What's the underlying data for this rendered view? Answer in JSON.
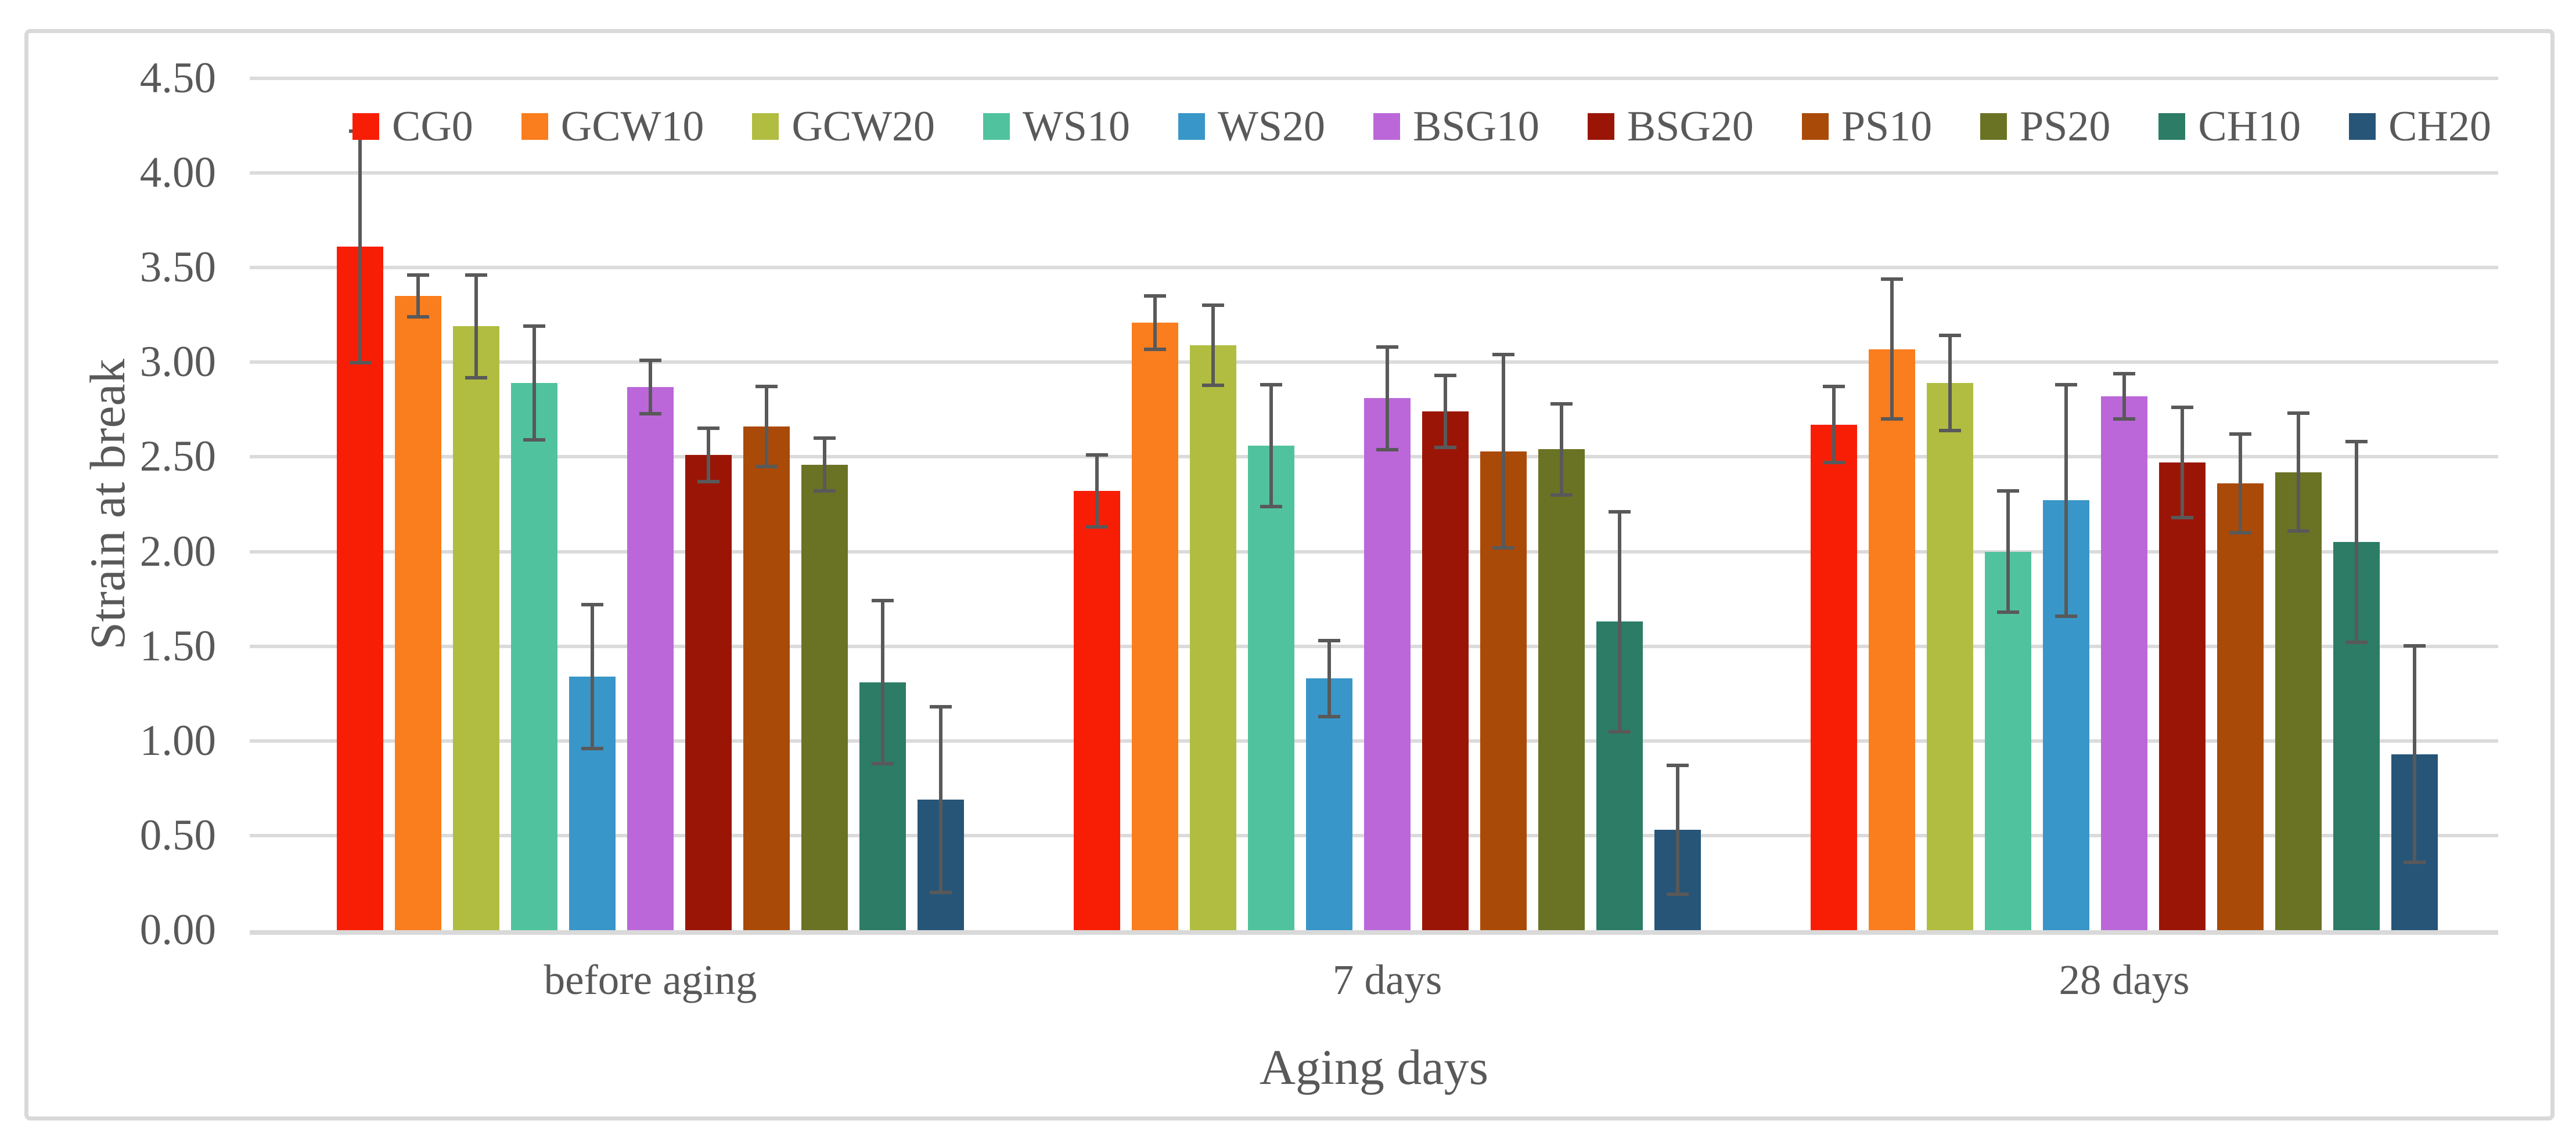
{
  "chart_data": {
    "type": "bar",
    "title": "",
    "xlabel": "Aging days",
    "ylabel": "Strain at break",
    "ylim": [
      0,
      4.5
    ],
    "ytick_step": 0.5,
    "ytick_labels": [
      "0.00",
      "0.50",
      "1.00",
      "1.50",
      "2.00",
      "2.50",
      "3.00",
      "3.50",
      "4.00",
      "4.50"
    ],
    "categories": [
      "before aging",
      "7 days",
      "28 days"
    ],
    "legend_position": "top",
    "grid": true,
    "series": [
      {
        "name": "CG0",
        "color": "#F81E06",
        "values": [
          3.61,
          2.32,
          2.67
        ],
        "errors": [
          0.62,
          0.2,
          0.21
        ]
      },
      {
        "name": "GCW10",
        "color": "#FA7D1E",
        "values": [
          3.35,
          3.21,
          3.07
        ],
        "errors": [
          0.12,
          0.15,
          0.38
        ]
      },
      {
        "name": "GCW20",
        "color": "#B1BD41",
        "values": [
          3.19,
          3.09,
          2.89
        ],
        "errors": [
          0.28,
          0.22,
          0.26
        ]
      },
      {
        "name": "WS10",
        "color": "#50C39E",
        "values": [
          2.89,
          2.56,
          2.0
        ],
        "errors": [
          0.31,
          0.33,
          0.33
        ]
      },
      {
        "name": "WS20",
        "color": "#3996C8",
        "values": [
          1.34,
          1.33,
          2.27
        ],
        "errors": [
          0.39,
          0.21,
          0.62
        ]
      },
      {
        "name": "BSG10",
        "color": "#BB67D9",
        "values": [
          2.87,
          2.81,
          2.82
        ],
        "errors": [
          0.15,
          0.28,
          0.13
        ]
      },
      {
        "name": "BSG20",
        "color": "#9B1507",
        "values": [
          2.51,
          2.74,
          2.47
        ],
        "errors": [
          0.15,
          0.2,
          0.3
        ]
      },
      {
        "name": "PS10",
        "color": "#AA4A08",
        "values": [
          2.66,
          2.53,
          2.36
        ],
        "errors": [
          0.22,
          0.52,
          0.27
        ]
      },
      {
        "name": "PS20",
        "color": "#6A7324",
        "values": [
          2.46,
          2.54,
          2.42
        ],
        "errors": [
          0.15,
          0.25,
          0.32
        ]
      },
      {
        "name": "CH10",
        "color": "#2C7C66",
        "values": [
          1.31,
          1.63,
          2.05
        ],
        "errors": [
          0.44,
          0.59,
          0.54
        ]
      },
      {
        "name": "CH20",
        "color": "#265578",
        "values": [
          0.69,
          0.53,
          0.93
        ],
        "errors": [
          0.5,
          0.35,
          0.58
        ]
      }
    ],
    "colors": {
      "gridline": "#DBDBDB",
      "axis_line": "#D9D9D9",
      "frame_border": "#D9D9D9",
      "text": "#595959",
      "error_bar": "#595959",
      "background": "#FFFFFF"
    }
  }
}
